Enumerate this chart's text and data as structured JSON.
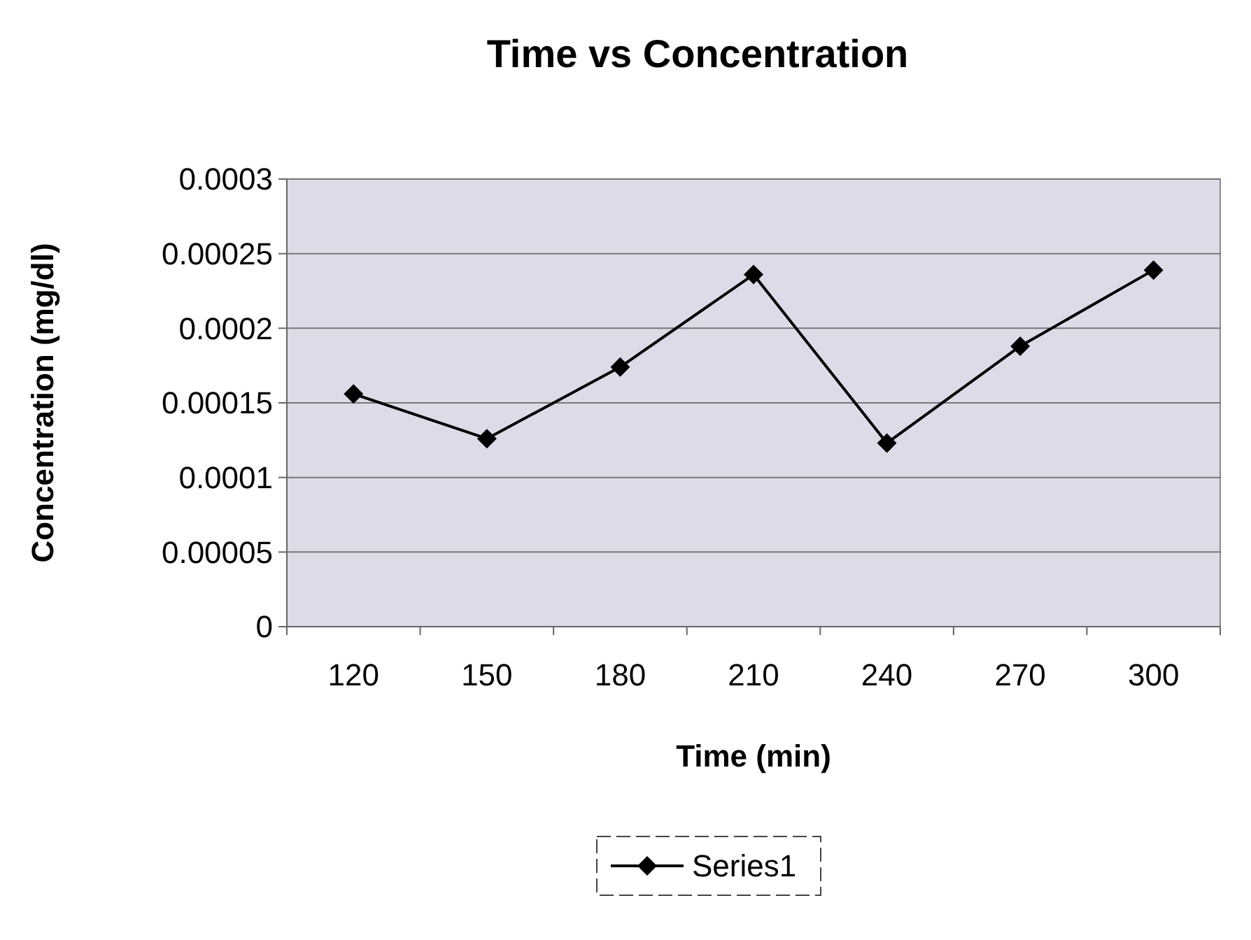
{
  "chart_data": {
    "type": "line",
    "title": "Time vs Concentration",
    "xlabel": "Time (min)",
    "ylabel": "Concentration (mg/dl)",
    "categories": [
      "120",
      "150",
      "180",
      "210",
      "240",
      "270",
      "300"
    ],
    "series": [
      {
        "name": "Series1",
        "color": "#000000",
        "values": [
          0.000156,
          0.000126,
          0.000174,
          0.000236,
          0.000123,
          0.000188,
          0.000239
        ]
      }
    ],
    "ylim": [
      0,
      0.0003
    ],
    "yticks": [
      0,
      {
        "value": 5e-05,
        "label": "0.00005"
      },
      0.0001,
      0.00015,
      0.0002,
      0.00025,
      0.0003
    ],
    "grid": "y",
    "legend": "bottom",
    "marker": "diamond",
    "line_style": "solid"
  }
}
